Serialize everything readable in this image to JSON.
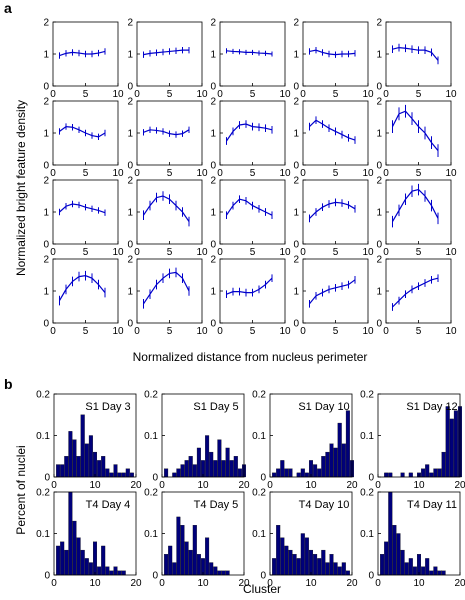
{
  "panel_a": {
    "label": "a",
    "ylabel": "Normalized bright feature density",
    "xlabel": "Normalized distance from nucleus perimeter",
    "line_color": "#0000cc"
  },
  "panel_b": {
    "label": "b",
    "ylabel": "Percent of nuclei",
    "xlabel": "Cluster",
    "bar_color": "#00007a"
  },
  "chart_data": [
    {
      "type": "line",
      "panel": "a",
      "grid": false,
      "xlim": [
        0,
        10
      ],
      "ylim": [
        0,
        2
      ],
      "xticks": [
        "0",
        "5",
        "10"
      ],
      "yticks": [
        "0",
        "1",
        "2"
      ],
      "x": [
        1,
        2,
        3,
        4,
        5,
        6,
        7,
        8
      ],
      "series": [
        {
          "values": [
            0.95,
            1.02,
            1.05,
            1.03,
            1.0,
            1.0,
            1.03,
            1.08
          ],
          "err": 0.1
        },
        {
          "values": [
            0.98,
            1.02,
            1.04,
            1.06,
            1.08,
            1.1,
            1.12,
            1.12
          ],
          "err": 0.1
        },
        {
          "values": [
            1.1,
            1.08,
            1.07,
            1.05,
            1.05,
            1.03,
            1.02,
            1.0
          ],
          "err": 0.08
        },
        {
          "values": [
            1.08,
            1.12,
            1.05,
            1.0,
            0.98,
            1.0,
            1.0,
            1.02
          ],
          "err": 0.1
        },
        {
          "values": [
            1.15,
            1.2,
            1.18,
            1.15,
            1.12,
            1.12,
            1.05,
            0.8
          ],
          "err": 0.12
        },
        {
          "values": [
            1.05,
            1.2,
            1.18,
            1.1,
            1.0,
            0.92,
            0.88,
            1.0
          ],
          "err": 0.1
        },
        {
          "values": [
            1.02,
            1.1,
            1.08,
            1.05,
            0.98,
            0.95,
            0.98,
            1.1
          ],
          "err": 0.1
        },
        {
          "values": [
            0.75,
            1.05,
            1.25,
            1.28,
            1.2,
            1.18,
            1.15,
            1.1
          ],
          "err": 0.12
        },
        {
          "values": [
            1.2,
            1.4,
            1.28,
            1.15,
            1.05,
            0.95,
            0.85,
            0.78
          ],
          "err": 0.12
        },
        {
          "values": [
            1.2,
            1.6,
            1.68,
            1.45,
            1.2,
            1.0,
            0.7,
            0.45
          ],
          "err": 0.2
        },
        {
          "values": [
            1.0,
            1.18,
            1.25,
            1.22,
            1.15,
            1.1,
            1.05,
            0.98
          ],
          "err": 0.1
        },
        {
          "values": [
            0.9,
            1.2,
            1.45,
            1.5,
            1.4,
            1.2,
            1.0,
            0.7
          ],
          "err": 0.15
        },
        {
          "values": [
            0.9,
            1.2,
            1.4,
            1.35,
            1.2,
            1.1,
            1.0,
            0.9
          ],
          "err": 0.12
        },
        {
          "values": [
            0.8,
            1.0,
            1.15,
            1.25,
            1.3,
            1.28,
            1.22,
            1.1
          ],
          "err": 0.12
        },
        {
          "values": [
            0.7,
            1.05,
            1.4,
            1.65,
            1.7,
            1.5,
            1.2,
            0.8
          ],
          "err": 0.18
        },
        {
          "values": [
            0.7,
            1.05,
            1.3,
            1.45,
            1.48,
            1.4,
            1.2,
            0.95
          ],
          "err": 0.15
        },
        {
          "values": [
            0.6,
            0.9,
            1.2,
            1.4,
            1.55,
            1.58,
            1.4,
            1.0
          ],
          "err": 0.15
        },
        {
          "values": [
            0.9,
            0.98,
            0.98,
            0.95,
            0.95,
            1.05,
            1.2,
            1.4
          ],
          "err": 0.12
        },
        {
          "values": [
            0.6,
            0.85,
            0.95,
            1.05,
            1.1,
            1.15,
            1.2,
            1.35
          ],
          "err": 0.12
        },
        {
          "values": [
            0.5,
            0.7,
            0.9,
            1.05,
            1.15,
            1.25,
            1.35,
            1.4
          ],
          "err": 0.12
        }
      ]
    },
    {
      "type": "bar",
      "panel": "b",
      "grid": false,
      "xlim": [
        0,
        20
      ],
      "ylim": [
        0,
        0.2
      ],
      "xticks": [
        "0",
        "10",
        "20"
      ],
      "yticks": [
        "0",
        "0.1",
        "0.2"
      ],
      "categories": [
        1,
        2,
        3,
        4,
        5,
        6,
        7,
        8,
        9,
        10,
        11,
        12,
        13,
        14,
        15,
        16,
        17,
        18,
        19,
        20
      ],
      "series": [
        {
          "name": "S1 Day 3",
          "values": [
            0.03,
            0.03,
            0.05,
            0.11,
            0.09,
            0.05,
            0.15,
            0.08,
            0.1,
            0.06,
            0.04,
            0.05,
            0.02,
            0.01,
            0.03,
            0.01,
            0.01,
            0.02,
            0.01,
            0.0
          ]
        },
        {
          "name": "S1 Day 5",
          "values": [
            0.02,
            0.0,
            0.01,
            0.02,
            0.03,
            0.04,
            0.05,
            0.03,
            0.07,
            0.04,
            0.1,
            0.06,
            0.04,
            0.09,
            0.04,
            0.07,
            0.04,
            0.05,
            0.02,
            0.03
          ]
        },
        {
          "name": "S1 Day 10",
          "values": [
            0.01,
            0.02,
            0.04,
            0.02,
            0.02,
            0.0,
            0.01,
            0.02,
            0.01,
            0.04,
            0.03,
            0.02,
            0.05,
            0.06,
            0.08,
            0.07,
            0.13,
            0.08,
            0.16,
            0.04
          ]
        },
        {
          "name": "S1 Day 12",
          "values": [
            0.0,
            0.01,
            0.01,
            0.0,
            0.0,
            0.01,
            0.0,
            0.01,
            0.0,
            0.01,
            0.02,
            0.03,
            0.01,
            0.02,
            0.02,
            0.06,
            0.17,
            0.14,
            0.16,
            0.17
          ]
        },
        {
          "name": "T4 Day 4",
          "values": [
            0.07,
            0.08,
            0.06,
            0.22,
            0.13,
            0.09,
            0.06,
            0.04,
            0.03,
            0.08,
            0.02,
            0.07,
            0.02,
            0.01,
            0.02,
            0.01,
            0.01,
            0.0,
            0.0,
            0.0
          ]
        },
        {
          "name": "T4 Day 5",
          "values": [
            0.05,
            0.07,
            0.03,
            0.14,
            0.12,
            0.08,
            0.06,
            0.12,
            0.05,
            0.04,
            0.09,
            0.03,
            0.02,
            0.01,
            0.01,
            0.01,
            0.0,
            0.0,
            0.0,
            0.0
          ]
        },
        {
          "name": "T4 Day 10",
          "values": [
            0.04,
            0.12,
            0.09,
            0.07,
            0.06,
            0.05,
            0.04,
            0.1,
            0.09,
            0.06,
            0.05,
            0.04,
            0.06,
            0.03,
            0.05,
            0.03,
            0.02,
            0.03,
            0.01,
            0.0
          ]
        },
        {
          "name": "T4 Day 11",
          "values": [
            0.05,
            0.08,
            0.2,
            0.12,
            0.1,
            0.06,
            0.03,
            0.04,
            0.02,
            0.05,
            0.02,
            0.04,
            0.01,
            0.02,
            0.01,
            0.01,
            0.0,
            0.0,
            0.0,
            0.0
          ]
        }
      ]
    }
  ]
}
